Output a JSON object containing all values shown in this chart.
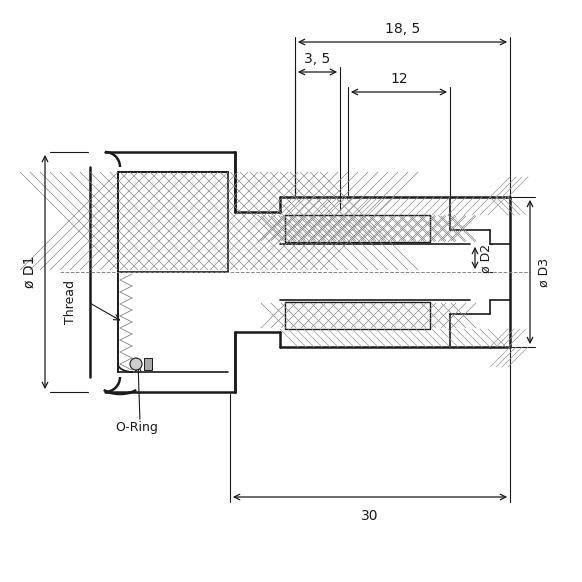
{
  "bg_color": "#ffffff",
  "line_color": "#1a1a1a",
  "hatch_color": "#555555",
  "dim_color": "#333333",
  "figsize": [
    5.82,
    5.82
  ],
  "dpi": 100,
  "annotations": {
    "dim_185": "18, 5",
    "dim_35": "3, 5",
    "dim_12": "12",
    "dim_30": "30",
    "dim_D1": "ø D1",
    "dim_Thread": "Thread",
    "dim_D2": "ø D2",
    "dim_D3": "ø D3",
    "dim_oring": "O-Ring"
  }
}
